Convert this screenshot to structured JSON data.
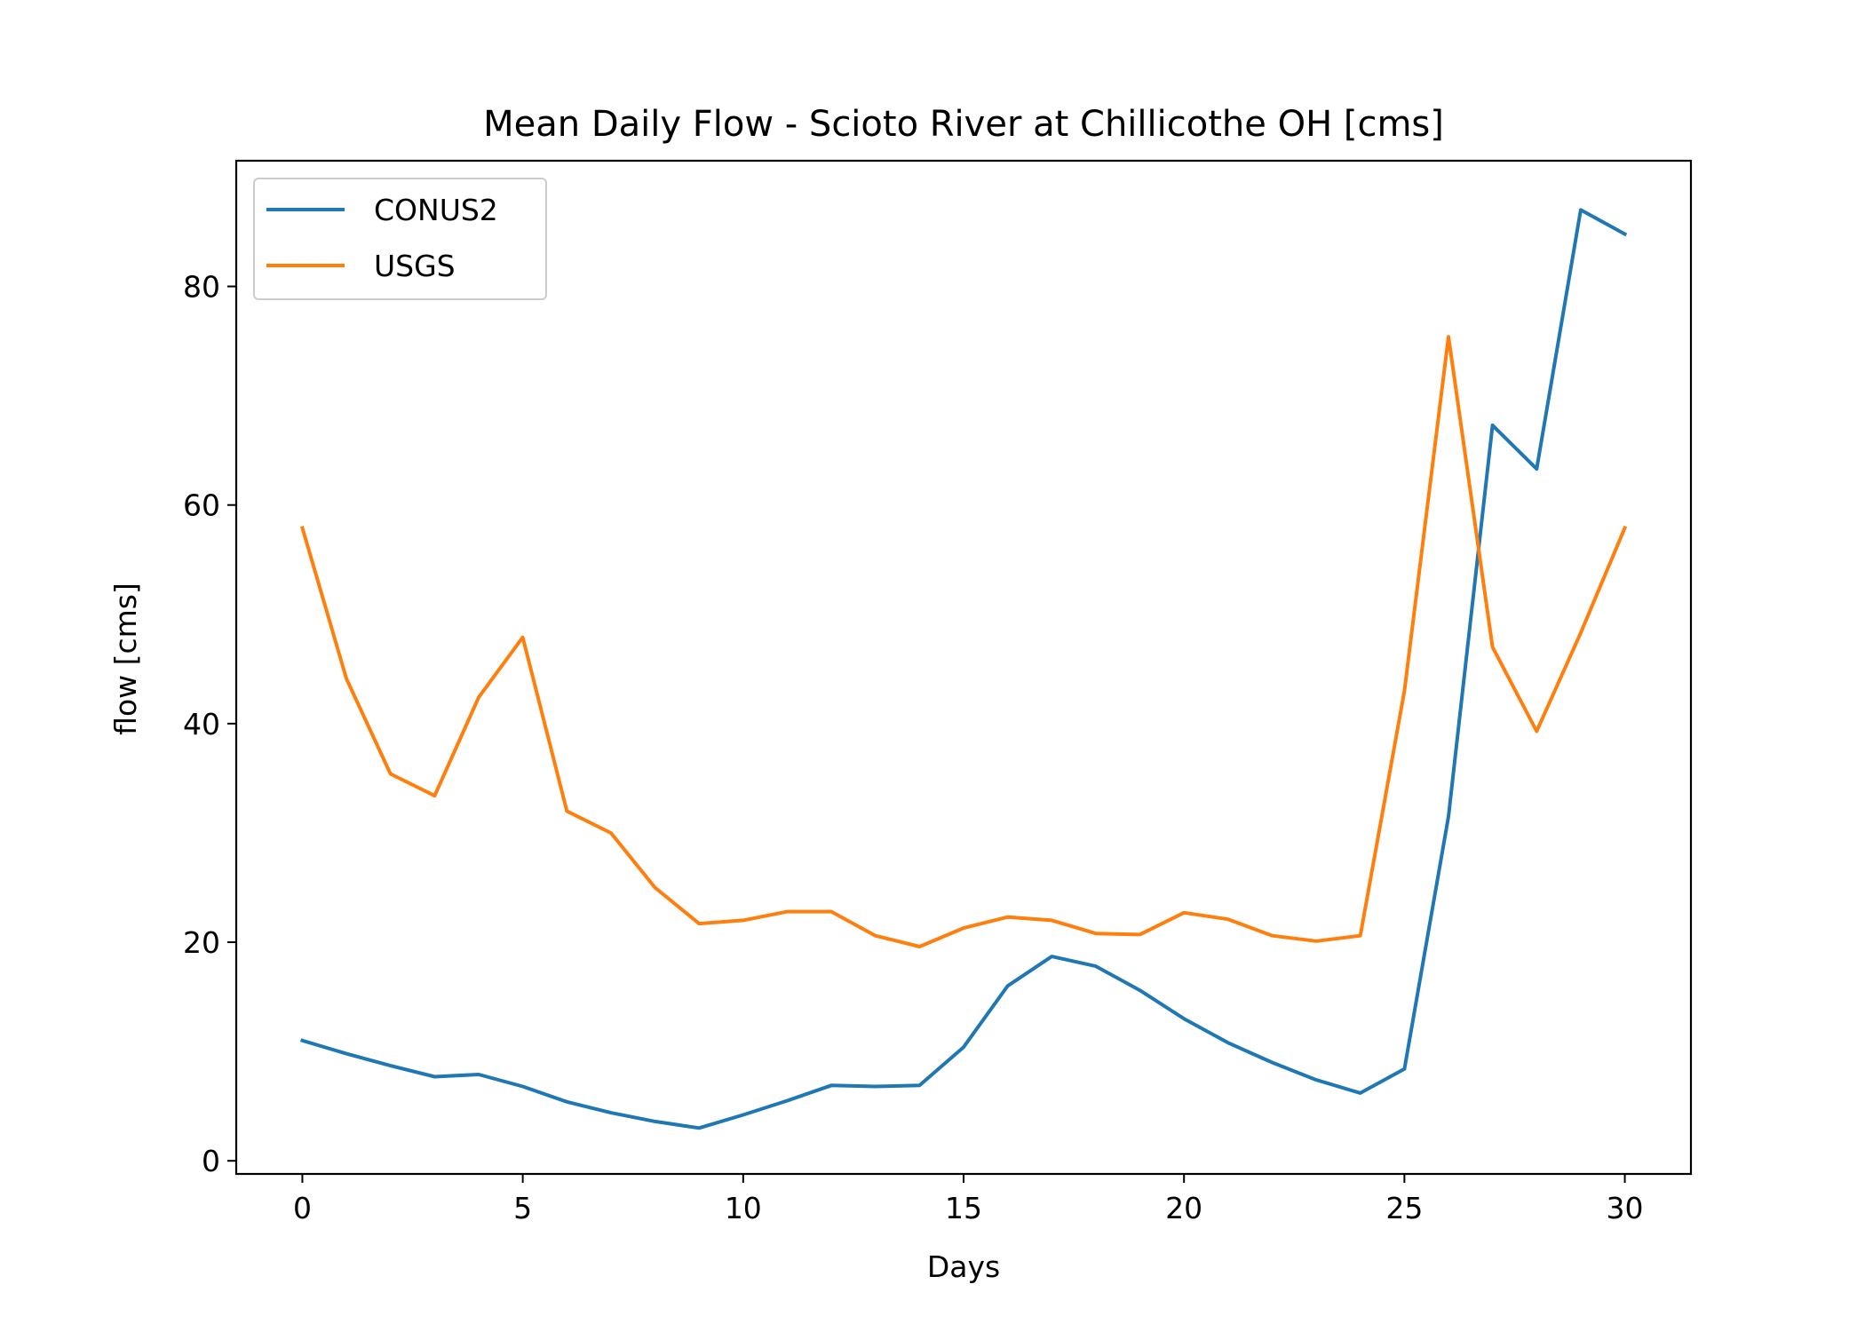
{
  "chart_data": {
    "type": "line",
    "title": "Mean Daily Flow - Scioto River at Chillicothe OH [cms]",
    "xlabel": "Days",
    "ylabel": "flow [cms]",
    "xlim": [
      -1.5,
      31.5
    ],
    "ylim": [
      -1.2,
      91.5
    ],
    "xticks": [
      0,
      5,
      10,
      15,
      20,
      25,
      30
    ],
    "yticks": [
      0,
      20,
      40,
      60,
      80
    ],
    "grid": false,
    "legend_position": "top-left",
    "x": [
      0,
      1,
      2,
      3,
      4,
      5,
      6,
      7,
      8,
      9,
      10,
      11,
      12,
      13,
      14,
      15,
      16,
      17,
      18,
      19,
      20,
      21,
      22,
      23,
      24,
      25,
      26,
      27,
      28,
      29,
      30
    ],
    "series": [
      {
        "name": "CONUS2",
        "color": "#1f77b4",
        "values": [
          11.0,
          9.8,
          8.7,
          7.7,
          7.9,
          6.8,
          5.4,
          4.4,
          3.6,
          3.0,
          4.2,
          5.5,
          6.9,
          6.8,
          6.9,
          10.4,
          16.0,
          18.7,
          17.8,
          15.6,
          13.0,
          10.8,
          9.0,
          7.4,
          6.2,
          8.4,
          31.5,
          67.3,
          63.3,
          87.0,
          84.8
        ]
      },
      {
        "name": "USGS",
        "color": "#ff7f0e",
        "values": [
          57.9,
          44.1,
          35.4,
          33.4,
          42.4,
          47.9,
          32.0,
          30.0,
          25.0,
          21.7,
          22.0,
          22.8,
          22.8,
          20.6,
          19.6,
          21.3,
          22.3,
          22.0,
          20.8,
          20.7,
          22.7,
          22.1,
          20.6,
          20.1,
          20.6,
          43.0,
          75.4,
          47.0,
          39.3,
          48.3,
          57.9
        ]
      }
    ]
  }
}
